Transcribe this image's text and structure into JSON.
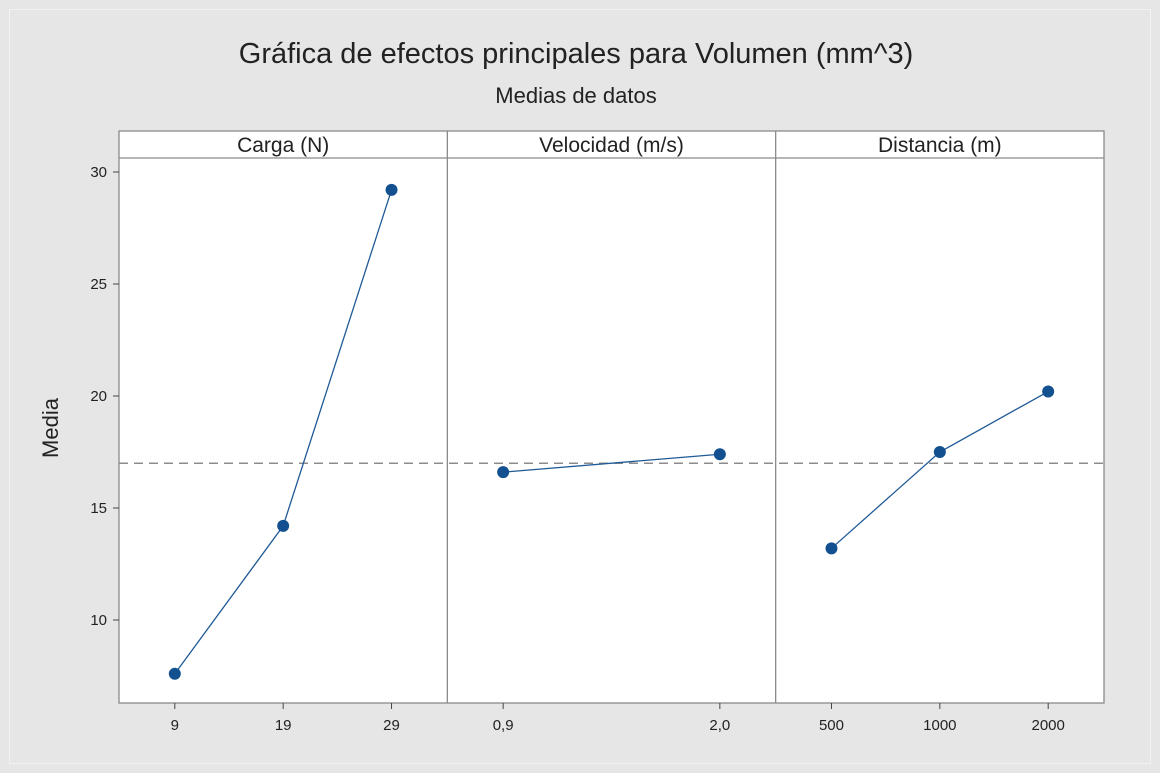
{
  "chart_data": {
    "type": "line",
    "title": "Gráfica de efectos principales para Volumen (mm^3)",
    "subtitle": "Medias de datos",
    "ylabel": "Media",
    "ylim": [
      7,
      30.5
    ],
    "yticks": [
      10,
      15,
      20,
      25,
      30
    ],
    "reference_line": 17.0,
    "grid": false,
    "colors": {
      "series": "#1f5a96",
      "marker": "#12508f",
      "reference": "#8c8c8c",
      "panel_border": "#8a8a8a",
      "panel_bg": "#ffffff"
    },
    "panels": [
      {
        "label": "Carga (N)",
        "categories": [
          "9",
          "19",
          "29"
        ],
        "values": [
          7.6,
          14.2,
          29.2
        ]
      },
      {
        "label": "Velocidad (m/s)",
        "categories": [
          "0,9",
          "2,0"
        ],
        "values": [
          16.6,
          17.4
        ]
      },
      {
        "label": "Distancia (m)",
        "categories": [
          "500",
          "1000",
          "2000"
        ],
        "values": [
          13.2,
          17.5,
          20.2
        ]
      }
    ]
  }
}
